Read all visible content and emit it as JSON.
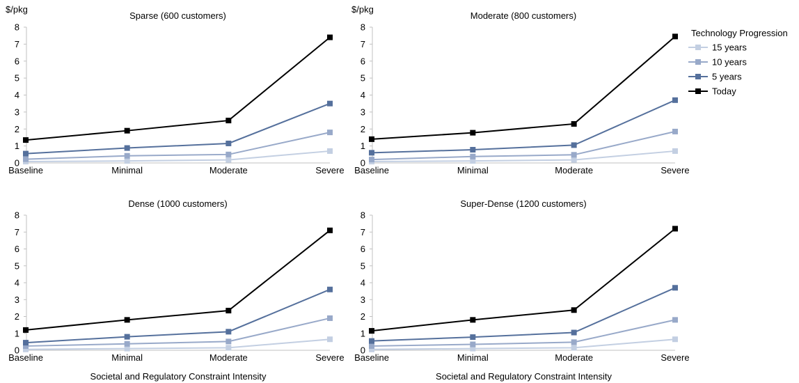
{
  "legend": {
    "title": "Technology Progression",
    "placement": "right"
  },
  "x_axis_title": "Societal and Regulatory Constraint Intensity",
  "series_style": [
    {
      "name": "15 years",
      "color": "#c3cfe2"
    },
    {
      "name": "10 years",
      "color": "#98a9c9"
    },
    {
      "name": "5 years",
      "color": "#55709c"
    },
    {
      "name": "Today",
      "color": "#000000"
    }
  ],
  "chart_data": [
    {
      "type": "line",
      "title": "Sparse (600 customers)",
      "ylabel": "$/pkg",
      "xlabel": "",
      "categories": [
        "Baseline",
        "Minimal",
        "Moderate",
        "Severe"
      ],
      "ylim": [
        0,
        8
      ],
      "yticks": [
        0,
        1,
        2,
        3,
        4,
        5,
        6,
        7,
        8
      ],
      "grid": false,
      "series": [
        {
          "name": "15 years",
          "values": [
            0.08,
            0.12,
            0.18,
            0.7
          ]
        },
        {
          "name": "10 years",
          "values": [
            0.22,
            0.42,
            0.5,
            1.8
          ]
        },
        {
          "name": "5 years",
          "values": [
            0.55,
            0.88,
            1.15,
            3.5
          ]
        },
        {
          "name": "Today",
          "values": [
            1.35,
            1.9,
            2.5,
            7.4
          ]
        }
      ]
    },
    {
      "type": "line",
      "title": "Moderate (800 customers)",
      "ylabel": "$/pkg",
      "xlabel": "",
      "categories": [
        "Baseline",
        "Minimal",
        "Moderate",
        "Severe"
      ],
      "ylim": [
        0,
        8
      ],
      "yticks": [
        0,
        1,
        2,
        3,
        4,
        5,
        6,
        7,
        8
      ],
      "grid": false,
      "series": [
        {
          "name": "15 years",
          "values": [
            0.08,
            0.12,
            0.18,
            0.7
          ]
        },
        {
          "name": "10 years",
          "values": [
            0.2,
            0.38,
            0.48,
            1.85
          ]
        },
        {
          "name": "5 years",
          "values": [
            0.6,
            0.78,
            1.05,
            3.7
          ]
        },
        {
          "name": "Today",
          "values": [
            1.4,
            1.78,
            2.3,
            7.45
          ]
        }
      ]
    },
    {
      "type": "line",
      "title": "Dense (1000 customers)",
      "ylabel": "",
      "xlabel": "Societal and Regulatory Constraint Intensity",
      "categories": [
        "Baseline",
        "Minimal",
        "Moderate",
        "Severe"
      ],
      "ylim": [
        0,
        8
      ],
      "yticks": [
        0,
        1,
        2,
        3,
        4,
        5,
        6,
        7,
        8
      ],
      "grid": false,
      "series": [
        {
          "name": "15 years",
          "values": [
            0.05,
            0.1,
            0.15,
            0.65
          ]
        },
        {
          "name": "10 years",
          "values": [
            0.25,
            0.38,
            0.52,
            1.9
          ]
        },
        {
          "name": "5 years",
          "values": [
            0.45,
            0.8,
            1.1,
            3.6
          ]
        },
        {
          "name": "Today",
          "values": [
            1.2,
            1.8,
            2.35,
            7.1
          ]
        }
      ]
    },
    {
      "type": "line",
      "title": "Super-Dense (1200 customers)",
      "ylabel": "",
      "xlabel": "Societal and Regulatory Constraint Intensity",
      "categories": [
        "Baseline",
        "Minimal",
        "Moderate",
        "Severe"
      ],
      "ylim": [
        0,
        8
      ],
      "yticks": [
        0,
        1,
        2,
        3,
        4,
        5,
        6,
        7,
        8
      ],
      "grid": false,
      "series": [
        {
          "name": "15 years",
          "values": [
            0.05,
            0.1,
            0.15,
            0.65
          ]
        },
        {
          "name": "10 years",
          "values": [
            0.25,
            0.35,
            0.48,
            1.8
          ]
        },
        {
          "name": "5 years",
          "values": [
            0.55,
            0.78,
            1.05,
            3.7
          ]
        },
        {
          "name": "Today",
          "values": [
            1.15,
            1.8,
            2.38,
            7.2
          ]
        }
      ]
    }
  ]
}
